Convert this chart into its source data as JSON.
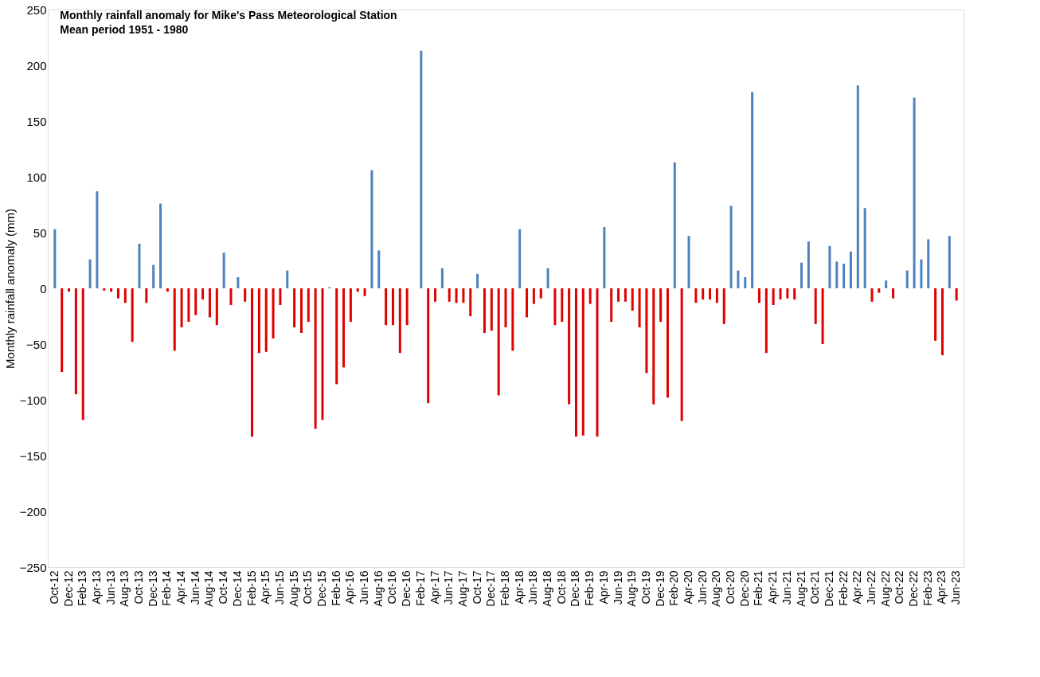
{
  "chart_data": {
    "type": "bar",
    "title": "Monthly rainfall anomaly for Mike's Pass Meteorological Station",
    "subtitle": "Mean period 1951 - 1980",
    "ylabel": "Monthly rainfall anomaly (mm)",
    "categories": [
      "Oct-12",
      null,
      "Dec-12",
      null,
      "Feb-13",
      null,
      "Apr-13",
      null,
      "Jun-13",
      null,
      "Aug-13",
      null,
      "Oct-13",
      null,
      "Dec-13",
      null,
      "Feb-14",
      null,
      "Apr-14",
      null,
      "Jun-14",
      null,
      "Aug-14",
      null,
      "Oct-14",
      null,
      "Dec-14",
      null,
      "Feb-15",
      null,
      "Apr-15",
      null,
      "Jun-15",
      null,
      "Aug-15",
      null,
      "Oct-15",
      null,
      "Dec-15",
      null,
      "Feb-16",
      null,
      "Apr-16",
      null,
      "Jun-16",
      null,
      "Aug-16",
      null,
      "Oct-16",
      null,
      "Dec-16",
      null,
      "Feb-17",
      null,
      "Apr-17",
      null,
      "Jun-17",
      null,
      "Aug-17",
      null,
      "Oct-17",
      null,
      "Dec-17",
      null,
      "Feb-18",
      null,
      "Apr-18",
      null,
      "Jun-18",
      null,
      "Aug-18",
      null,
      "Oct-18",
      null,
      "Dec-18",
      null,
      "Feb-19",
      null,
      "Apr-19",
      null,
      "Jun-19",
      null,
      "Aug-19",
      null,
      "Oct-19",
      null,
      "Dec-19",
      null,
      "Feb-20",
      null,
      "Apr-20",
      null,
      "Jun-20",
      null,
      "Aug-20",
      null,
      "Oct-20",
      null,
      "Dec-20",
      null,
      "Feb-21",
      null,
      "Apr-21",
      null,
      "Jun-21",
      null,
      "Aug-21",
      null,
      "Oct-21",
      null,
      "Dec-21",
      null,
      "Feb-22",
      null,
      "Apr-22",
      null,
      "Jun-22",
      null,
      "Aug-22",
      null,
      "Oct-22",
      null,
      "Dec-22",
      null,
      "Feb-23",
      null,
      "Apr-23",
      null,
      "Jun-23"
    ],
    "series": [
      {
        "color": "#4f81bd",
        "values": [
          53,
          null,
          null,
          null,
          null,
          26,
          87,
          null,
          null,
          null,
          null,
          null,
          40,
          null,
          21,
          76,
          null,
          null,
          null,
          null,
          null,
          null,
          null,
          null,
          32,
          null,
          10,
          null,
          null,
          null,
          null,
          null,
          null,
          16,
          null,
          null,
          null,
          null,
          null,
          1,
          null,
          null,
          null,
          null,
          null,
          106,
          34,
          null,
          null,
          null,
          null,
          0,
          213,
          null,
          null,
          18,
          null,
          null,
          null,
          null,
          13,
          null,
          null,
          null,
          null,
          null,
          53,
          null,
          null,
          null,
          18,
          null,
          null,
          null,
          null,
          null,
          null,
          null,
          55,
          null,
          null,
          null,
          null,
          null,
          null,
          null,
          null,
          null,
          113,
          null,
          47,
          null,
          null,
          null,
          null,
          null,
          74,
          16,
          10,
          176,
          null,
          null,
          null,
          null,
          null,
          null,
          23,
          42,
          null,
          null,
          38,
          24,
          22,
          33,
          182,
          72,
          null,
          null,
          7,
          null,
          0,
          16,
          171,
          26,
          44,
          null,
          null,
          47,
          null
        ]
      },
      {
        "color": "#e00000",
        "values": [
          null,
          -75,
          -3,
          -95,
          -118,
          null,
          null,
          -2,
          -3,
          -9,
          -13,
          -48,
          null,
          -13,
          null,
          null,
          -3,
          -56,
          -35,
          -30,
          -24,
          -10,
          -26,
          -33,
          null,
          -15,
          null,
          -12,
          -133,
          -58,
          -57,
          -45,
          -15,
          null,
          -35,
          -40,
          -30,
          -126,
          -118,
          null,
          -86,
          -71,
          -30,
          -3,
          -7,
          null,
          null,
          -33,
          -33,
          -58,
          -33,
          null,
          null,
          -103,
          -12,
          null,
          -12,
          -13,
          -13,
          -25,
          null,
          -40,
          -38,
          -96,
          -35,
          -56,
          null,
          -26,
          -14,
          -9,
          null,
          -33,
          -30,
          -104,
          -133,
          -132,
          -14,
          -133,
          null,
          -30,
          -12,
          -12,
          -20,
          -35,
          -76,
          -104,
          -30,
          -98,
          null,
          -119,
          null,
          -13,
          -10,
          -10,
          -13,
          -32,
          null,
          null,
          null,
          null,
          -13,
          -58,
          -15,
          -10,
          -9,
          -10,
          null,
          null,
          -32,
          -50,
          null,
          null,
          null,
          null,
          null,
          null,
          -12,
          -4,
          null,
          -9,
          null,
          null,
          null,
          null,
          null,
          -47,
          -60,
          null,
          -11
        ]
      }
    ],
    "ylim": [
      -250,
      250
    ],
    "yticks": [
      -250,
      -200,
      -150,
      -100,
      -50,
      0,
      50,
      100,
      150,
      200,
      250
    ]
  }
}
